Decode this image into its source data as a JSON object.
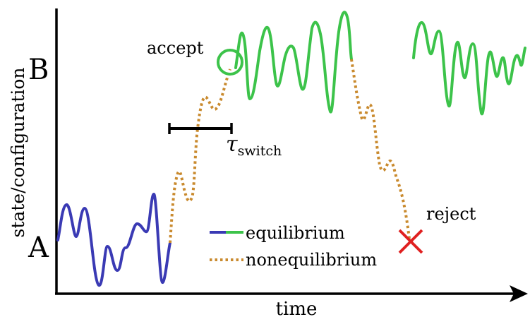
{
  "axes": {
    "xlabel": "time",
    "ylabel": "state/configuration",
    "state_a": "A",
    "state_b": "B"
  },
  "annotations": {
    "accept": "accept",
    "reject": "reject",
    "tau": "τ",
    "tau_sub": "switch"
  },
  "legend": {
    "equilibrium": "equilibrium",
    "nonequilibrium": "nonequilibrium"
  },
  "colors": {
    "equilibrium_a": "#3a3ab4",
    "equilibrium_b": "#3cc34a",
    "nonequilibrium": "#c98a2e",
    "accept_circle": "#3cc34a",
    "reject_cross": "#e02020",
    "axis": "#000000"
  }
}
